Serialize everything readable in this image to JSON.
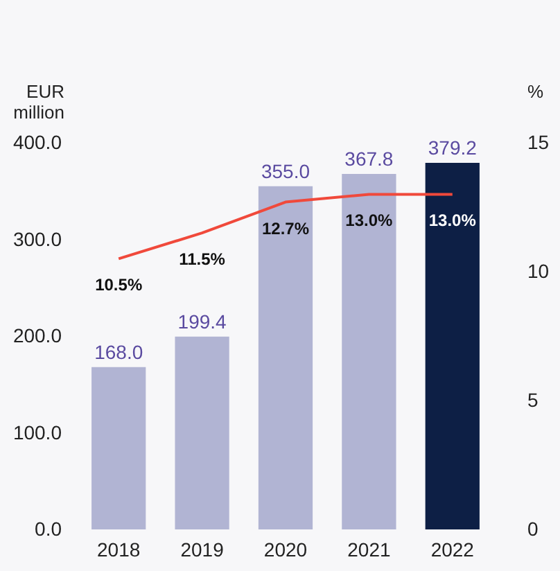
{
  "chart_data": {
    "type": "bar",
    "categories": [
      "2018",
      "2019",
      "2020",
      "2021",
      "2022"
    ],
    "ylabel": "EUR million",
    "y2label": "%",
    "ylim": [
      0,
      400
    ],
    "yticks": [
      {
        "value": 0,
        "label": "0.0"
      },
      {
        "value": 100,
        "label": "100.0"
      },
      {
        "value": 200,
        "label": "200.0"
      },
      {
        "value": 300,
        "label": "300.0"
      },
      {
        "value": 400,
        "label": "400.0"
      }
    ],
    "y2lim": [
      0,
      15
    ],
    "y2ticks": [
      0,
      5,
      10,
      15
    ],
    "grid": false,
    "series": [
      {
        "colors": [
          "#b1b4d3",
          "#b1b4d3",
          "#b1b4d3",
          "#b1b4d3",
          "#0d1f45"
        ],
        "values": [
          168.0,
          199.4,
          355.0,
          367.8,
          379.2
        ],
        "value_labels": [
          "168.0",
          "199.4",
          "355.0",
          "367.8",
          "379.2"
        ]
      },
      {
        "type": "line",
        "axis": "y2",
        "color": "#f0493b",
        "marker": "none",
        "line_style": "solid",
        "values": [
          10.5,
          11.5,
          12.7,
          13.0,
          13.0
        ],
        "value_labels": [
          "10.5%",
          "11.5%",
          "12.7%",
          "13.0%",
          "13.0%"
        ]
      }
    ]
  }
}
